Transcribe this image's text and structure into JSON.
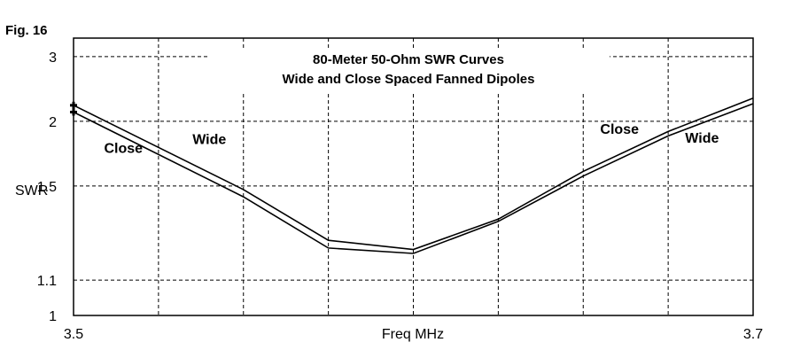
{
  "figure": {
    "label": "Fig. 16"
  },
  "chart_data": {
    "type": "line",
    "title": "80-Meter 50-Ohm SWR Curves",
    "subtitle": "Wide and Close Spaced Fanned Dipoles",
    "xlabel": "Freq MHz",
    "ylabel": "SWR",
    "xlim": [
      3.5,
      3.7
    ],
    "ylim": [
      1,
      3.5
    ],
    "y_scale": "reciprocal",
    "grid": true,
    "x_ticks": [
      3.5,
      3.525,
      3.55,
      3.575,
      3.6,
      3.625,
      3.65,
      3.675,
      3.7
    ],
    "x_tick_labels": [
      "3.5",
      "",
      "",
      "",
      "",
      "",
      "",
      "",
      "3.7"
    ],
    "y_ticks": [
      1,
      1.1,
      1.5,
      2,
      3
    ],
    "y_tick_labels": [
      "1",
      "1.1",
      "1.5",
      "2",
      "3"
    ],
    "series": [
      {
        "name": "Close",
        "x": [
          3.5,
          3.55,
          3.575,
          3.6,
          3.625,
          3.65,
          3.675,
          3.7
        ],
        "values": [
          2.18,
          1.48,
          1.24,
          1.205,
          1.33,
          1.59,
          1.9,
          2.27
        ]
      },
      {
        "name": "Wide",
        "x": [
          3.5,
          3.55,
          3.575,
          3.6,
          3.625,
          3.65,
          3.675,
          3.7
        ],
        "values": [
          2.1,
          1.44,
          1.21,
          1.19,
          1.32,
          1.56,
          1.86,
          2.2
        ]
      }
    ],
    "annotations": [
      {
        "text": "Close",
        "x": 3.509,
        "y": 1.72
      },
      {
        "text": "Wide",
        "x": 3.535,
        "y": 1.79
      },
      {
        "text": "Close",
        "x": 3.655,
        "y": 1.88
      },
      {
        "text": "Wide",
        "x": 3.68,
        "y": 1.8
      }
    ]
  }
}
